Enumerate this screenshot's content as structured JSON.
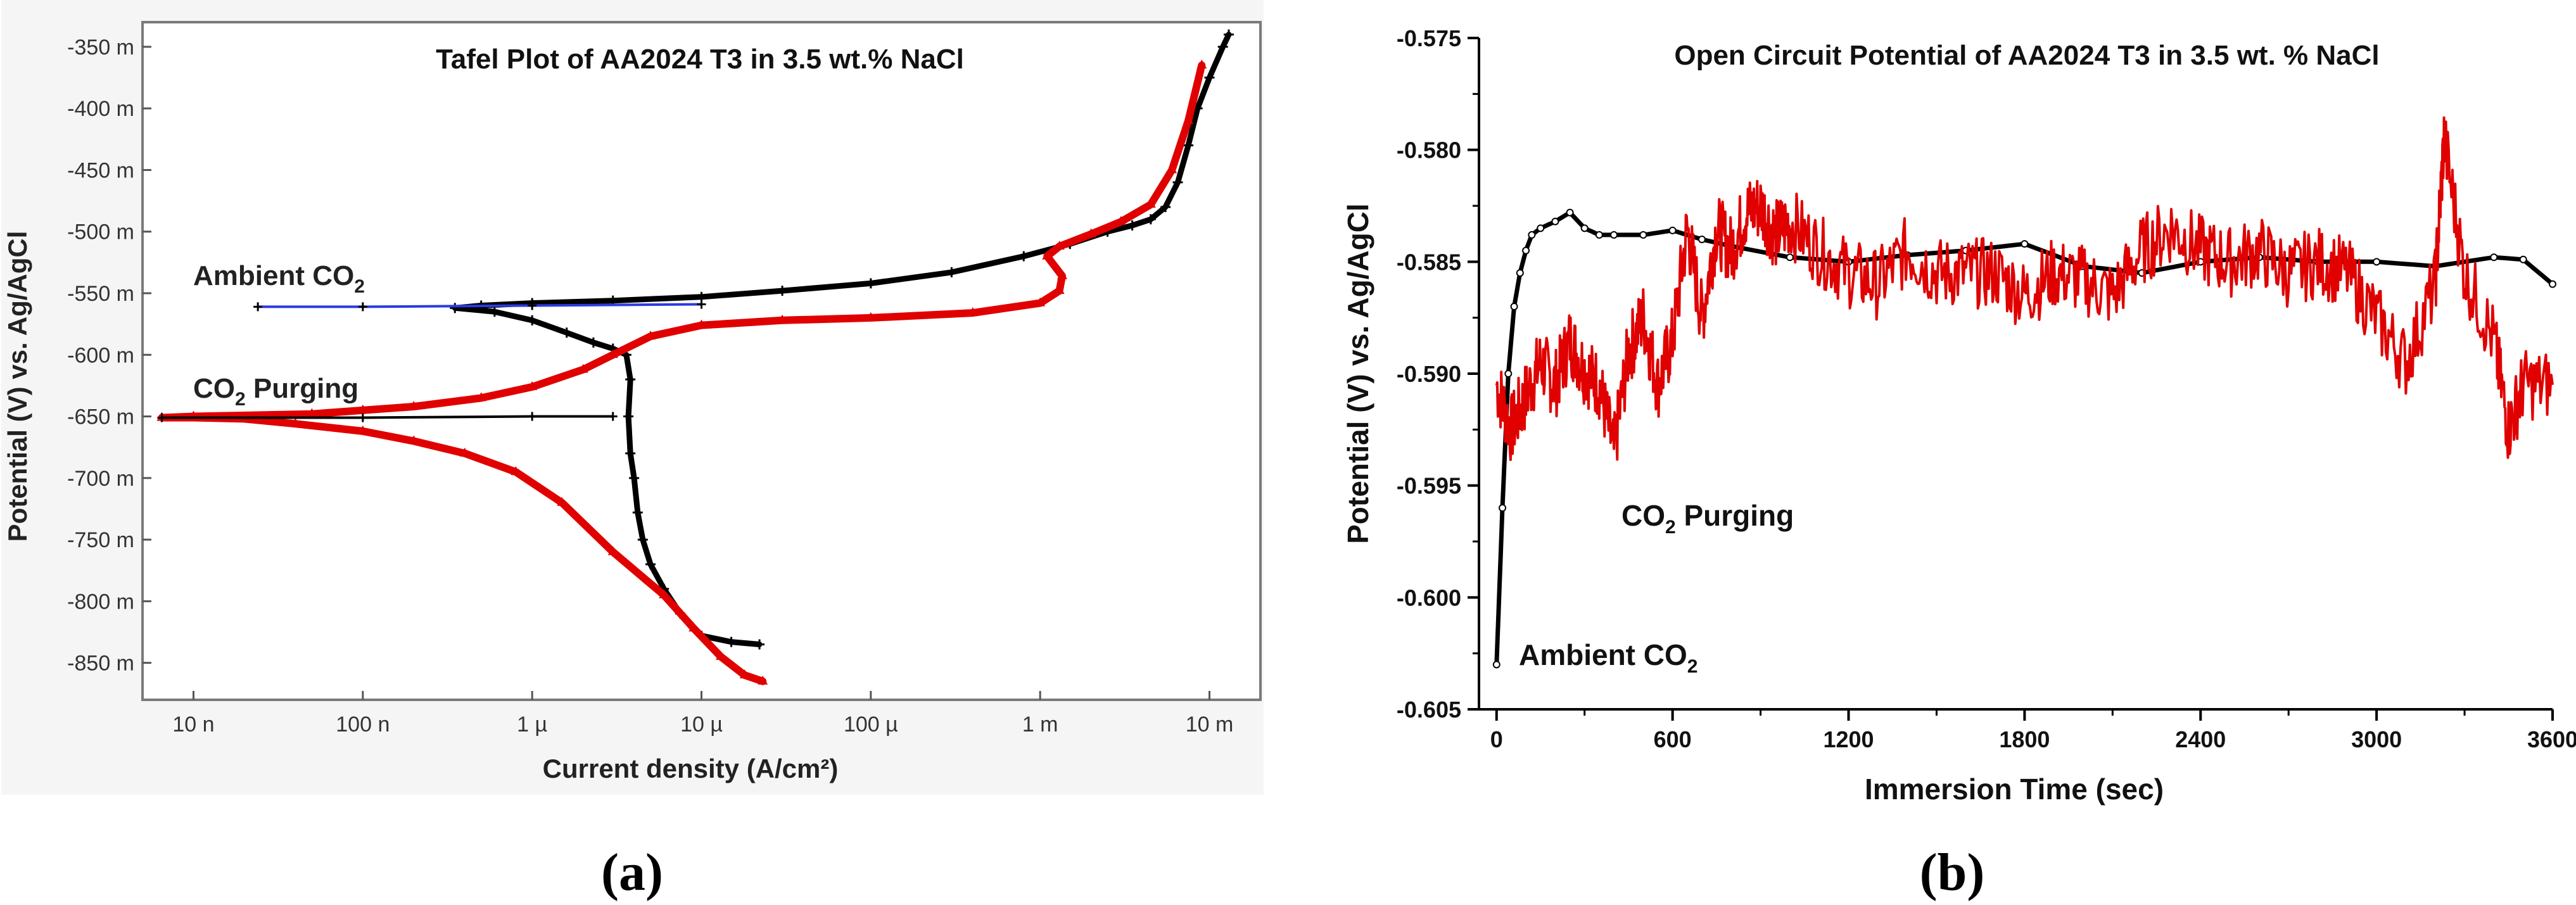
{
  "panels": {
    "a": "(a)",
    "b": "(b)"
  },
  "chart_data": [
    {
      "id": "a",
      "type": "line",
      "title": "Tafel Plot of AA2024 T3 in 3.5 wt.% NaCl",
      "xlabel": "Current density (A/cm²)",
      "ylabel": "Potential (V) vs. Ag/AgCl",
      "xscale": "log",
      "xlim": [
        5e-09,
        0.02
      ],
      "ylim": [
        -880,
        -330
      ],
      "xtick_values": [
        1e-08,
        1e-07,
        1e-06,
        1e-05,
        0.0001,
        0.001,
        0.01
      ],
      "xtick_labels": [
        "10 n",
        "100 n",
        "1 µ",
        "10 µ",
        "100 µ",
        "1 m",
        "10 m"
      ],
      "ytick_values": [
        -350,
        -400,
        -450,
        -500,
        -550,
        -600,
        -650,
        -700,
        -750,
        -800,
        -850
      ],
      "ytick_labels": [
        "-350 m",
        "-400 m",
        "-450 m",
        "-500 m",
        "-550 m",
        "-600 m",
        "-650 m",
        "-700 m",
        "-750 m",
        "-800 m",
        "-850 m"
      ],
      "grid": false,
      "annotations": [
        {
          "text": "Ambient CO",
          "sub": "2",
          "target": "Ambient CO2"
        },
        {
          "text": "CO",
          "sub": "2",
          "suffix": " Purging",
          "target": "CO2 Purging"
        }
      ],
      "colors": {
        "Ambient CO2": "#000000",
        "Ambient fit": "#2a3be0",
        "CO2 Purging": "#e00000",
        "CO2 Purging fit": "#000000"
      },
      "series": [
        {
          "name": "Ambient CO2",
          "color": "#000000",
          "marker": "plus",
          "x": [
            2.2e-05,
            1.5e-05,
            1e-05,
            7.5e-06,
            6e-06,
            5e-06,
            4.5e-06,
            4.2e-06,
            4e-06,
            3.8e-06,
            3.7e-06,
            3.8e-06,
            3.6e-06,
            3e-06,
            2.3e-06,
            1.6e-06,
            1e-06,
            6e-07,
            3.5e-07,
            5e-07,
            1e-06,
            3e-06,
            1e-05,
            3e-05,
            0.0001,
            0.0003,
            0.0008,
            0.0015,
            0.0025,
            0.0035,
            0.0045,
            0.0055,
            0.0065,
            0.0075,
            0.0085,
            0.01,
            0.012,
            0.013
          ],
          "y": [
            -835,
            -833,
            -828,
            -810,
            -790,
            -770,
            -750,
            -728,
            -700,
            -680,
            -650,
            -620,
            -600,
            -595,
            -590,
            -582,
            -572,
            -565,
            -562,
            -560,
            -558,
            -556,
            -553,
            -548,
            -542,
            -533,
            -520,
            -510,
            -500,
            -495,
            -490,
            -480,
            -460,
            -430,
            -400,
            -375,
            -350,
            -340
          ]
        },
        {
          "name": "Ambient fit",
          "color": "#2a3be0",
          "x": [
            2.4e-08,
            1e-07,
            1e-06,
            1e-05
          ],
          "y": [
            -561,
            -561,
            -560,
            -559
          ]
        },
        {
          "name": "CO2 Purging",
          "color": "#e00000",
          "marker": "triangle",
          "x": [
            2.3e-05,
            1.8e-05,
            1.3e-05,
            9e-06,
            6e-06,
            3e-06,
            1.5e-06,
            8e-07,
            4e-07,
            2e-07,
            1e-07,
            4e-08,
            2e-08,
            1e-08,
            6.5e-09,
            1e-08,
            5e-08,
            1e-07,
            2e-07,
            5e-07,
            1e-06,
            2e-06,
            3e-06,
            5e-06,
            1e-05,
            3e-05,
            0.0001,
            0.0004,
            0.001,
            0.0013,
            0.00135,
            0.0011,
            0.0013,
            0.002,
            0.003,
            0.0045,
            0.006,
            0.0075,
            0.009
          ],
          "y": [
            -865,
            -860,
            -845,
            -822,
            -795,
            -760,
            -720,
            -695,
            -680,
            -670,
            -662,
            -656,
            -652,
            -651,
            -651,
            -650,
            -648,
            -645,
            -642,
            -635,
            -626,
            -612,
            -600,
            -585,
            -576,
            -572,
            -570,
            -566,
            -558,
            -548,
            -536,
            -520,
            -512,
            -502,
            -492,
            -478,
            -450,
            -410,
            -365
          ]
        },
        {
          "name": "CO2 Purging fit",
          "color": "#000000",
          "x": [
            6.5e-09,
            1e-07,
            1e-06,
            3e-06
          ],
          "y": [
            -651,
            -651,
            -650,
            -650
          ]
        }
      ]
    },
    {
      "id": "b",
      "type": "line",
      "title": "Open Circuit Potential of AA2024 T3 in 3.5 wt. % NaCl",
      "xlabel": "Immersion Time (sec)",
      "ylabel": "Potential (V) vs. Ag/AgCl",
      "xlim": [
        -60,
        3600
      ],
      "ylim": [
        -0.605,
        -0.575
      ],
      "xtick_values": [
        0,
        600,
        1200,
        1800,
        2400,
        3000,
        3600
      ],
      "xtick_labels": [
        "0",
        "600",
        "1200",
        "1800",
        "2400",
        "3000",
        "3600"
      ],
      "ytick_values": [
        -0.575,
        -0.58,
        -0.585,
        -0.59,
        -0.595,
        -0.6,
        -0.605
      ],
      "ytick_labels": [
        "-0.575",
        "-0.580",
        "-0.585",
        "-0.590",
        "-0.595",
        "-0.600",
        "-0.605"
      ],
      "grid": false,
      "annotations": [
        {
          "text": "CO",
          "sub": "2",
          "suffix": " Purging",
          "target": "CO2 Purging"
        },
        {
          "text": "Ambient CO",
          "sub": "2",
          "target": "Ambient CO2"
        }
      ],
      "colors": {
        "Ambient CO2": "#000000",
        "CO2 Purging": "#e00000"
      },
      "series": [
        {
          "name": "Ambient CO2",
          "color": "#000000",
          "x": [
            0,
            20,
            40,
            60,
            80,
            100,
            120,
            150,
            200,
            250,
            300,
            350,
            400,
            500,
            600,
            700,
            800,
            1000,
            1200,
            1400,
            1600,
            1800,
            2000,
            2200,
            2400,
            2600,
            2800,
            3000,
            3200,
            3400,
            3500,
            3600
          ],
          "y": [
            -0.603,
            -0.596,
            -0.59,
            -0.587,
            -0.5855,
            -0.5845,
            -0.5838,
            -0.5835,
            -0.5832,
            -0.5828,
            -0.5835,
            -0.5838,
            -0.5838,
            -0.5838,
            -0.5836,
            -0.584,
            -0.5843,
            -0.5848,
            -0.585,
            -0.5847,
            -0.5845,
            -0.5842,
            -0.5852,
            -0.5855,
            -0.585,
            -0.5848,
            -0.585,
            -0.585,
            -0.5852,
            -0.5848,
            -0.5849,
            -0.586
          ]
        },
        {
          "name": "CO2 Purging",
          "color": "#e00000",
          "x": [
            0,
            50,
            100,
            150,
            200,
            250,
            300,
            350,
            400,
            450,
            500,
            550,
            600,
            650,
            700,
            750,
            800,
            850,
            900,
            950,
            1000,
            1100,
            1200,
            1300,
            1400,
            1500,
            1600,
            1700,
            1800,
            1900,
            2000,
            2100,
            2200,
            2300,
            2400,
            2500,
            2600,
            2700,
            2800,
            2900,
            3000,
            3100,
            3200,
            3230,
            3300,
            3400,
            3450,
            3500,
            3600
          ],
          "y": [
            -0.5905,
            -0.5925,
            -0.591,
            -0.5895,
            -0.5905,
            -0.5885,
            -0.5898,
            -0.5905,
            -0.5935,
            -0.589,
            -0.5875,
            -0.5905,
            -0.5885,
            -0.5835,
            -0.5875,
            -0.5835,
            -0.5845,
            -0.5828,
            -0.5825,
            -0.5838,
            -0.5832,
            -0.5845,
            -0.5855,
            -0.586,
            -0.5845,
            -0.5855,
            -0.5855,
            -0.5855,
            -0.5865,
            -0.5855,
            -0.5858,
            -0.5865,
            -0.5845,
            -0.5835,
            -0.5845,
            -0.585,
            -0.5845,
            -0.5855,
            -0.585,
            -0.5855,
            -0.5875,
            -0.5895,
            -0.586,
            -0.5795,
            -0.5855,
            -0.5885,
            -0.5925,
            -0.5905,
            -0.5905
          ]
        }
      ]
    }
  ]
}
